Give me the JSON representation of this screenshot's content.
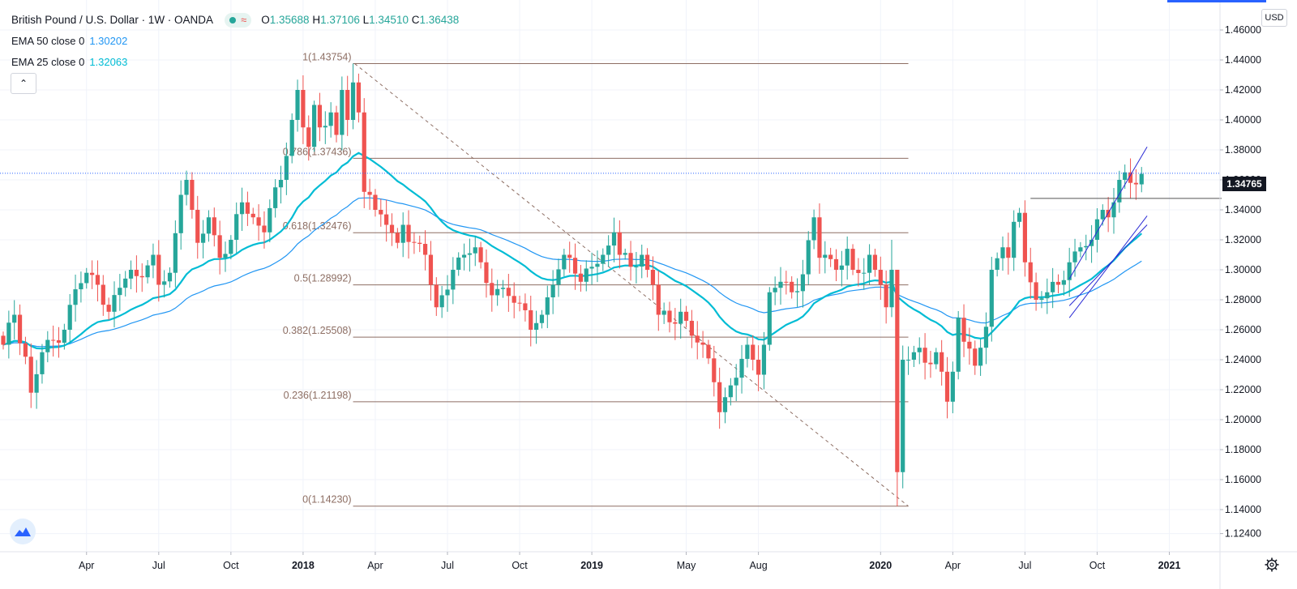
{
  "header": {
    "symbol_title": "British Pound / U.S. Dollar · 1W · OANDA",
    "ohlc": {
      "o_label": "O",
      "o": "1.35688",
      "h_label": "H",
      "h": "1.37106",
      "l_label": "L",
      "l": "1.34510",
      "c_label": "C",
      "c": "1.36438"
    },
    "status_icon": "market-open-dot",
    "status_symbol": "≈"
  },
  "indicators": [
    {
      "label": "EMA 50 close 0",
      "value": "1.30202",
      "color": "#2196f3"
    },
    {
      "label": "EMA 25 close 0",
      "value": "1.32063",
      "color": "#00bcd4"
    }
  ],
  "buttons": {
    "collapse_icon": "chevron-up-icon",
    "collapse_glyph": "⌃",
    "currency": "USD"
  },
  "price_tag": "1.34765",
  "colors": {
    "up": "#26a69a",
    "down": "#ef5350",
    "fib": "#8d6e63",
    "ema50": "#2196f3",
    "ema25": "#00bcd4",
    "channel": "#2a2ad4",
    "last_price_line": "#2962ff"
  },
  "chart_data": {
    "type": "candlestick",
    "title": "British Pound / U.S. Dollar",
    "interval": "1W",
    "source": "OANDA",
    "y_axis": {
      "ticks": [
        "1.46000",
        "1.44000",
        "1.42000",
        "1.40000",
        "1.38000",
        "1.36000",
        "1.34000",
        "1.32000",
        "1.30000",
        "1.28000",
        "1.26000",
        "1.24000",
        "1.22000",
        "1.20000",
        "1.18000",
        "1.16000",
        "1.14000",
        "1.12400"
      ],
      "range": [
        1.116,
        1.466
      ]
    },
    "x_axis": {
      "labels": [
        {
          "t": "Apr",
          "idx": 15,
          "bold": false
        },
        {
          "t": "Jul",
          "idx": 28,
          "bold": false
        },
        {
          "t": "Oct",
          "idx": 41,
          "bold": false
        },
        {
          "t": "2018",
          "idx": 54,
          "bold": true
        },
        {
          "t": "Apr",
          "idx": 67,
          "bold": false
        },
        {
          "t": "Jul",
          "idx": 80,
          "bold": false
        },
        {
          "t": "Oct",
          "idx": 93,
          "bold": false
        },
        {
          "t": "2019",
          "idx": 106,
          "bold": true
        },
        {
          "t": "May",
          "idx": 123,
          "bold": false
        },
        {
          "t": "Aug",
          "idx": 136,
          "bold": false
        },
        {
          "t": "2020",
          "idx": 158,
          "bold": true
        },
        {
          "t": "Apr",
          "idx": 171,
          "bold": false
        },
        {
          "t": "Jul",
          "idx": 184,
          "bold": false
        },
        {
          "t": "Oct",
          "idx": 197,
          "bold": false
        },
        {
          "t": "2021",
          "idx": 210,
          "bold": true
        }
      ]
    },
    "fibonacci": [
      {
        "label": "1(1.43754)",
        "level": 1.43754
      },
      {
        "label": "0.786(1.37436)",
        "level": 1.37436
      },
      {
        "label": "0.618(1.32476)",
        "level": 1.32476
      },
      {
        "label": "0.5(1.28992)",
        "level": 1.28992
      },
      {
        "label": "0.382(1.25508)",
        "level": 1.25508
      },
      {
        "label": "0.236(1.21198)",
        "level": 1.21198
      },
      {
        "label": "0(1.14230)",
        "level": 1.1423
      }
    ],
    "fib_range_idx": [
      63,
      163
    ],
    "last_price": 1.36438,
    "horizontal_level": {
      "value": 1.34765,
      "from_idx": 185
    },
    "trend_channel": {
      "lower": [
        [
          192,
          1.268
        ],
        [
          206,
          1.336
        ]
      ],
      "upper": [
        [
          192,
          1.294
        ],
        [
          206,
          1.382
        ]
      ],
      "mid": [
        [
          192,
          1.276
        ],
        [
          206,
          1.33
        ]
      ]
    },
    "anchors": [
      [
        0,
        1.25
      ],
      [
        2,
        1.27
      ],
      [
        4,
        1.242
      ],
      [
        5,
        1.218
      ],
      [
        7,
        1.245
      ],
      [
        9,
        1.253
      ],
      [
        11,
        1.26
      ],
      [
        13,
        1.287
      ],
      [
        15,
        1.298
      ],
      [
        17,
        1.29
      ],
      [
        19,
        1.272
      ],
      [
        21,
        1.288
      ],
      [
        23,
        1.3
      ],
      [
        25,
        1.295
      ],
      [
        27,
        1.31
      ],
      [
        28,
        1.29
      ],
      [
        30,
        1.298
      ],
      [
        32,
        1.35
      ],
      [
        33,
        1.36
      ],
      [
        34,
        1.34
      ],
      [
        35,
        1.318
      ],
      [
        37,
        1.335
      ],
      [
        39,
        1.308
      ],
      [
        41,
        1.32
      ],
      [
        43,
        1.345
      ],
      [
        45,
        1.335
      ],
      [
        47,
        1.325
      ],
      [
        49,
        1.355
      ],
      [
        50,
        1.36
      ],
      [
        52,
        1.4
      ],
      [
        53,
        1.42
      ],
      [
        54,
        1.395
      ],
      [
        55,
        1.382
      ],
      [
        56,
        1.41
      ],
      [
        57,
        1.395
      ],
      [
        59,
        1.405
      ],
      [
        60,
        1.39
      ],
      [
        61,
        1.42
      ],
      [
        62,
        1.4
      ],
      [
        63,
        1.425
      ],
      [
        64,
        1.405
      ],
      [
        65,
        1.352
      ],
      [
        66,
        1.35
      ],
      [
        67,
        1.34
      ],
      [
        69,
        1.33
      ],
      [
        71,
        1.318
      ],
      [
        72,
        1.33
      ],
      [
        74,
        1.318
      ],
      [
        76,
        1.31
      ],
      [
        77,
        1.29
      ],
      [
        78,
        1.275
      ],
      [
        79,
        1.283
      ],
      [
        81,
        1.3
      ],
      [
        83,
        1.31
      ],
      [
        85,
        1.315
      ],
      [
        86,
        1.305
      ],
      [
        88,
        1.283
      ],
      [
        90,
        1.288
      ],
      [
        92,
        1.278
      ],
      [
        94,
        1.273
      ],
      [
        95,
        1.26
      ],
      [
        97,
        1.27
      ],
      [
        99,
        1.29
      ],
      [
        101,
        1.31
      ],
      [
        102,
        1.308
      ],
      [
        104,
        1.292
      ],
      [
        106,
        1.302
      ],
      [
        108,
        1.31
      ],
      [
        110,
        1.325
      ],
      [
        111,
        1.31
      ],
      [
        113,
        1.302
      ],
      [
        115,
        1.31
      ],
      [
        116,
        1.3
      ],
      [
        117,
        1.29
      ],
      [
        118,
        1.27
      ],
      [
        120,
        1.265
      ],
      [
        122,
        1.272
      ],
      [
        124,
        1.256
      ],
      [
        126,
        1.25
      ],
      [
        128,
        1.225
      ],
      [
        129,
        1.205
      ],
      [
        130,
        1.215
      ],
      [
        132,
        1.228
      ],
      [
        134,
        1.25
      ],
      [
        135,
        1.24
      ],
      [
        136,
        1.23
      ],
      [
        137,
        1.25
      ],
      [
        138,
        1.285
      ],
      [
        140,
        1.292
      ],
      [
        142,
        1.285
      ],
      [
        144,
        1.297
      ],
      [
        146,
        1.335
      ],
      [
        147,
        1.308
      ],
      [
        148,
        1.31
      ],
      [
        150,
        1.3
      ],
      [
        152,
        1.314
      ],
      [
        153,
        1.3
      ],
      [
        155,
        1.298
      ],
      [
        156,
        1.31
      ],
      [
        157,
        1.3
      ],
      [
        158,
        1.29
      ],
      [
        159,
        1.275
      ],
      [
        160,
        1.3
      ],
      [
        161,
        1.165
      ],
      [
        162,
        1.24
      ],
      [
        163,
        1.24
      ],
      [
        164,
        1.245
      ],
      [
        165,
        1.248
      ],
      [
        166,
        1.238
      ],
      [
        167,
        1.237
      ],
      [
        168,
        1.245
      ],
      [
        169,
        1.232
      ],
      [
        170,
        1.212
      ],
      [
        171,
        1.232
      ],
      [
        172,
        1.268
      ],
      [
        173,
        1.252
      ],
      [
        175,
        1.236
      ],
      [
        176,
        1.248
      ],
      [
        177,
        1.262
      ],
      [
        178,
        1.3
      ],
      [
        180,
        1.315
      ],
      [
        181,
        1.308
      ],
      [
        182,
        1.332
      ],
      [
        183,
        1.338
      ],
      [
        184,
        1.305
      ],
      [
        186,
        1.28
      ],
      [
        188,
        1.285
      ],
      [
        190,
        1.29
      ],
      [
        192,
        1.305
      ],
      [
        194,
        1.315
      ],
      [
        196,
        1.32
      ],
      [
        198,
        1.34
      ],
      [
        199,
        1.335
      ],
      [
        200,
        1.345
      ],
      [
        201,
        1.36
      ],
      [
        202,
        1.365
      ],
      [
        203,
        1.358
      ],
      [
        204,
        1.357
      ],
      [
        205,
        1.364
      ]
    ]
  }
}
